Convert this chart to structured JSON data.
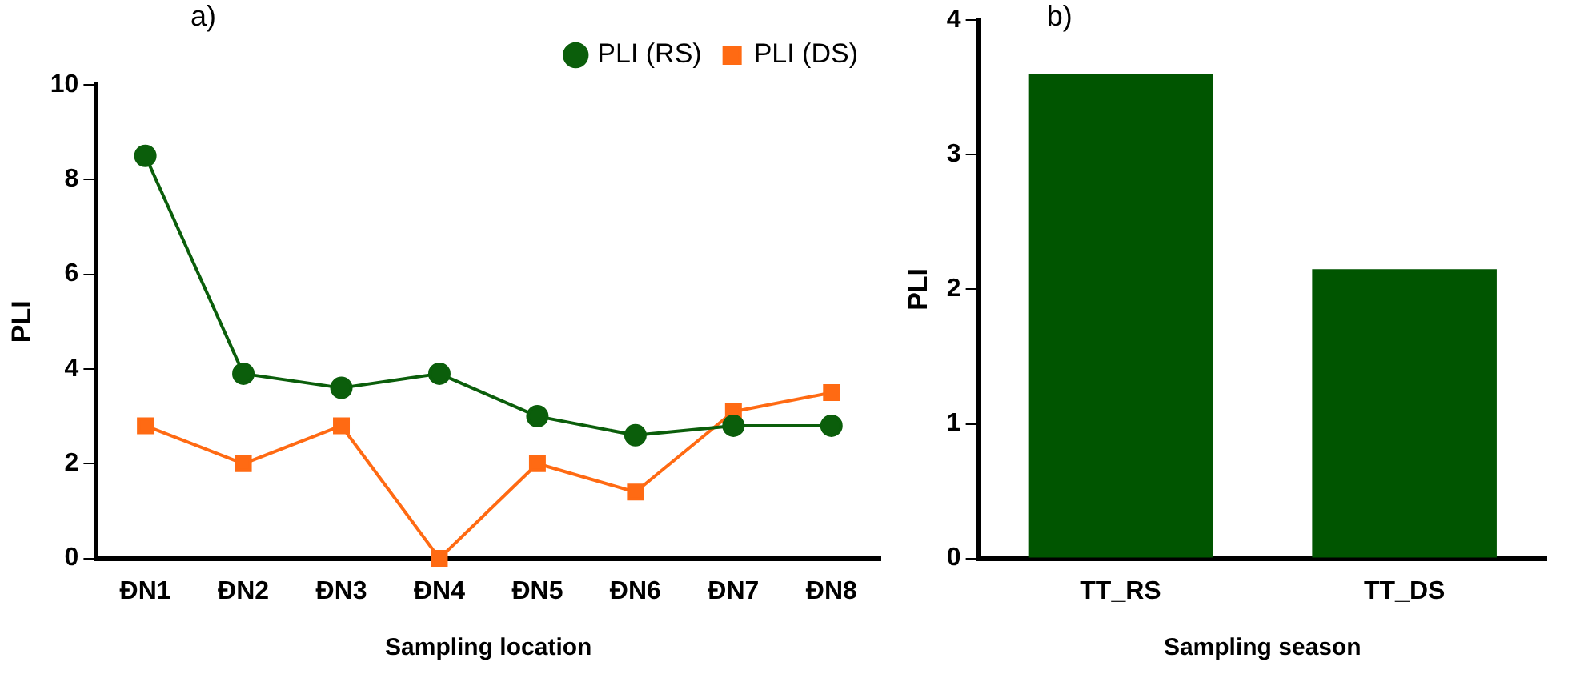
{
  "chart_data": [
    {
      "type": "line",
      "annotations": [
        "a)"
      ],
      "xlabel": "Sampling location",
      "ylabel": "PLI",
      "categories": [
        "ĐN1",
        "ĐN2",
        "ĐN3",
        "ĐN4",
        "ĐN5",
        "ĐN6",
        "ĐN7",
        "ĐN8"
      ],
      "series": [
        {
          "name": "PLI (RS)",
          "color": "#0b5e0b",
          "marker": "circle",
          "values": [
            8.5,
            3.9,
            3.6,
            3.9,
            3.0,
            2.6,
            2.8,
            2.8
          ]
        },
        {
          "name": "PLI (DS)",
          "color": "#ff6a13",
          "marker": "square",
          "values": [
            2.8,
            2.0,
            2.8,
            0,
            2.0,
            1.4,
            3.1,
            3.5
          ]
        }
      ],
      "ylim": [
        0,
        10
      ],
      "yticks": [
        0,
        2,
        4,
        6,
        8,
        10
      ],
      "grid": false,
      "legend": "top right"
    },
    {
      "type": "bar",
      "annotations": [
        "b)"
      ],
      "xlabel": "Sampling season",
      "ylabel": "PLI",
      "categories": [
        "TT_RS",
        "TT_DS"
      ],
      "values": [
        3.6,
        2.15
      ],
      "color": "#005500",
      "ylim": [
        0,
        4
      ],
      "yticks": [
        0,
        1,
        2,
        3,
        4
      ],
      "grid": false,
      "legend": false
    }
  ]
}
